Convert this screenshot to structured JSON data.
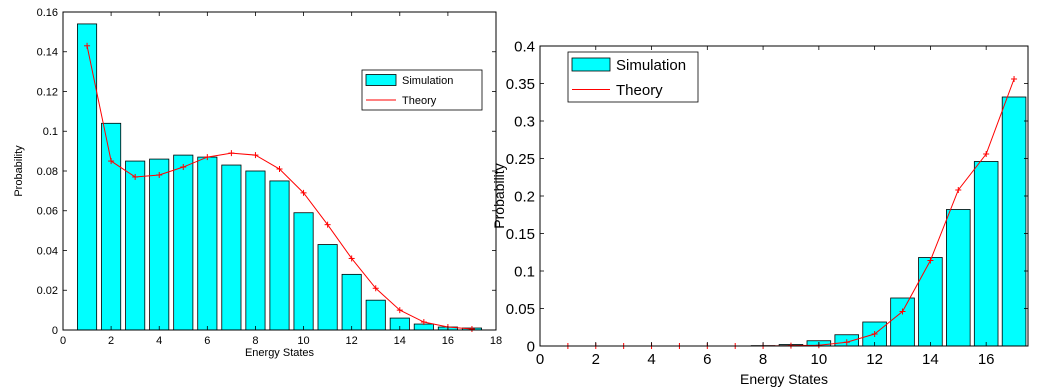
{
  "chart_data": [
    {
      "type": "bar",
      "xlabel": "Energy States",
      "ylabel": "Probability",
      "xlim": [
        0,
        18
      ],
      "ylim": [
        0,
        0.16
      ],
      "xticks": [
        0,
        2,
        4,
        6,
        8,
        10,
        12,
        14,
        16,
        18
      ],
      "yticks": [
        0,
        0.02,
        0.04,
        0.06,
        0.08,
        0.1,
        0.12,
        0.14,
        0.16
      ],
      "x": [
        1,
        2,
        3,
        4,
        5,
        6,
        7,
        8,
        9,
        10,
        11,
        12,
        13,
        14,
        15,
        16,
        17
      ],
      "legend_position": "top-right",
      "grid": false,
      "series": [
        {
          "name": "Simulation",
          "kind": "bar",
          "color": "#00ffff",
          "values": [
            0.154,
            0.104,
            0.085,
            0.086,
            0.088,
            0.087,
            0.083,
            0.08,
            0.075,
            0.059,
            0.043,
            0.028,
            0.015,
            0.006,
            0.003,
            0.0015,
            0.001
          ]
        },
        {
          "name": "Theory",
          "kind": "line",
          "color": "#ff0000",
          "values": [
            0.143,
            0.085,
            0.077,
            0.078,
            0.082,
            0.087,
            0.089,
            0.088,
            0.081,
            0.069,
            0.053,
            0.036,
            0.021,
            0.01,
            0.004,
            0.0015,
            0.0005
          ]
        }
      ]
    },
    {
      "type": "bar",
      "xlabel": "Energy States",
      "ylabel": "Probability",
      "xlim": [
        0,
        17.5
      ],
      "ylim": [
        0,
        0.4
      ],
      "xticks": [
        0,
        2,
        4,
        6,
        8,
        10,
        12,
        14,
        16
      ],
      "yticks": [
        0,
        0.05,
        0.1,
        0.15,
        0.2,
        0.25,
        0.3,
        0.35,
        0.4
      ],
      "x": [
        1,
        2,
        3,
        4,
        5,
        6,
        7,
        8,
        9,
        10,
        11,
        12,
        13,
        14,
        15,
        16,
        17
      ],
      "legend_position": "top-left",
      "grid": false,
      "series": [
        {
          "name": "Simulation",
          "kind": "bar",
          "color": "#00ffff",
          "values": [
            0.0,
            0.0,
            0.0,
            0.0,
            0.0,
            0.0,
            0.0,
            0.0005,
            0.002,
            0.007,
            0.015,
            0.032,
            0.064,
            0.118,
            0.182,
            0.246,
            0.332
          ]
        },
        {
          "name": "Theory",
          "kind": "line",
          "color": "#ff0000",
          "values": [
            0.0,
            0.0,
            0.0,
            0.0,
            0.0,
            0.0,
            0.0,
            0.0,
            0.0005,
            0.001,
            0.005,
            0.016,
            0.046,
            0.114,
            0.208,
            0.256,
            0.356
          ]
        }
      ]
    }
  ]
}
